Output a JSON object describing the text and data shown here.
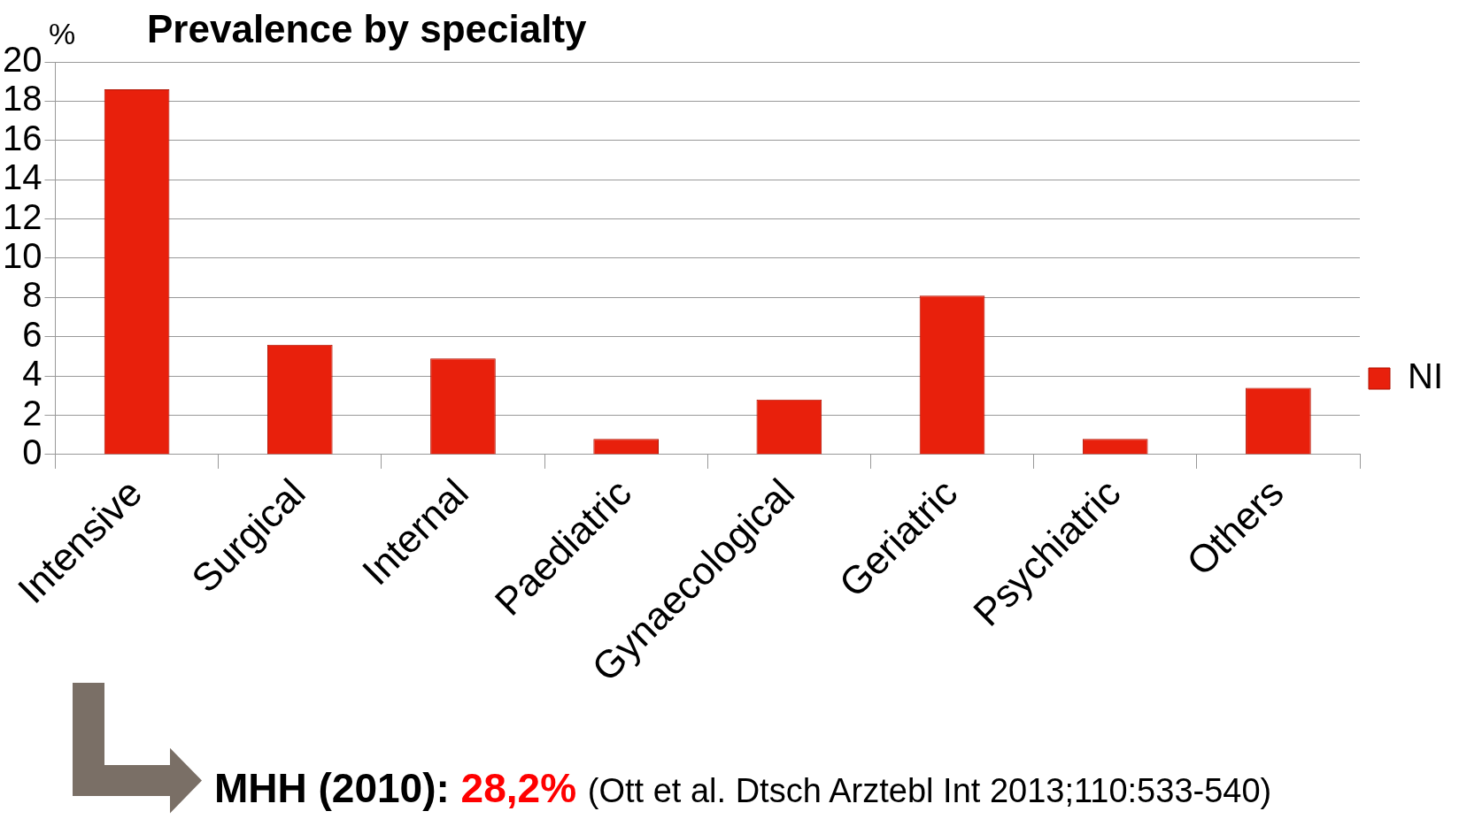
{
  "chart_data": {
    "type": "bar",
    "title": "Prevalence by specialty",
    "ylabel": "%",
    "categories": [
      "Intensive",
      "Surgical",
      "Internal",
      "Paediatric",
      "Gynaecological",
      "Geriatric",
      "Psychiatric",
      "Others"
    ],
    "series": [
      {
        "name": "NI",
        "color": "#e8200c",
        "values": [
          18.6,
          5.6,
          4.9,
          0.8,
          2.8,
          8.1,
          0.8,
          3.4
        ]
      }
    ],
    "ylim": [
      0,
      20
    ],
    "yticks": [
      0,
      2,
      4,
      6,
      8,
      10,
      12,
      14,
      16,
      18,
      20
    ],
    "grid": "y",
    "legend": "right",
    "annotations": [
      "MHH (2010):",
      "28,2%",
      "(Ott et al. Dtsch Arztebl Int 2013;110:533-540)"
    ]
  }
}
